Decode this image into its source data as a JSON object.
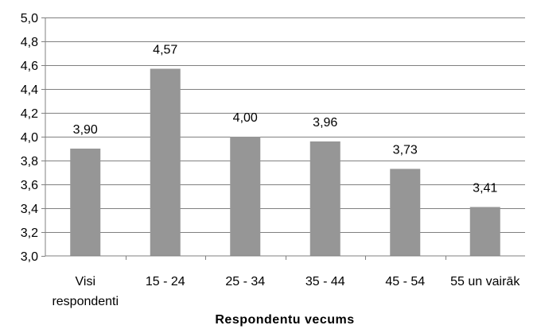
{
  "chart_data": {
    "type": "bar",
    "categories": [
      "Visi respondenti",
      "15 - 24",
      "25 - 34",
      "35 - 44",
      "45 - 54",
      "55 un vairāk"
    ],
    "category_lines": [
      [
        "Visi",
        "respondenti"
      ],
      [
        "15 - 24"
      ],
      [
        "25 - 34"
      ],
      [
        "35 - 44"
      ],
      [
        "45 - 54"
      ],
      [
        "55 un vairāk"
      ]
    ],
    "values": [
      3.9,
      4.57,
      4.0,
      3.96,
      3.73,
      3.41
    ],
    "value_labels": [
      "3,90",
      "4,57",
      "4,00",
      "3,96",
      "3,73",
      "3,41"
    ],
    "title": "",
    "xlabel": "Respondentu vecums",
    "ylabel": "",
    "ylim": [
      3.0,
      5.0
    ],
    "yticks": [
      3.0,
      3.2,
      3.4,
      3.6,
      3.8,
      4.0,
      4.2,
      4.4,
      4.6,
      4.8,
      5.0
    ],
    "ytick_labels": [
      "3,0",
      "3,2",
      "3,4",
      "3,6",
      "3,8",
      "4,0",
      "4,2",
      "4,4",
      "4,6",
      "4,8",
      "5,0"
    ],
    "grid": true,
    "legend": "none",
    "colors": {
      "bar": "#969696",
      "grid": "#808080",
      "axis": "#808080"
    }
  }
}
